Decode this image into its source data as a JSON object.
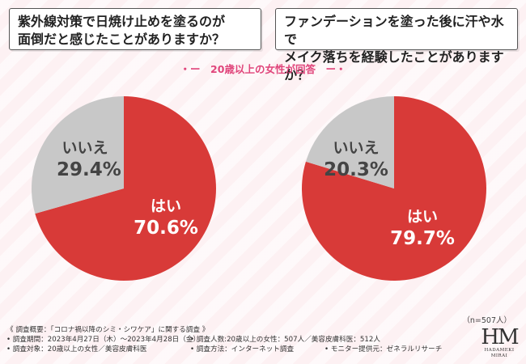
{
  "questions": {
    "left": [
      "紫外線対策で日焼け止めを塗るのが",
      "面倒だと感じたことがありますか？"
    ],
    "right": [
      "ファンデーションを塗った後に汗や水で",
      "メイク落ちを経験したことがありますか？"
    ]
  },
  "subheading": "・ー　20歳以上の女性が回答　ー・",
  "colors": {
    "yes": "#d83a38",
    "no": "#c8c8c8",
    "accent": "#e0457b"
  },
  "chart_data": [
    {
      "type": "pie",
      "title": "紫外線対策で日焼け止めを塗るのが面倒だと感じたことがありますか？",
      "labels": [
        "はい",
        "いいえ"
      ],
      "values": [
        70.6,
        29.4
      ],
      "value_labels": [
        "70.6%",
        "29.4%"
      ]
    },
    {
      "type": "pie",
      "title": "ファンデーションを塗った後に汗や水でメイク落ちを経験したことがありますか？",
      "labels": [
        "はい",
        "いいえ"
      ],
      "values": [
        79.7,
        20.3
      ],
      "value_labels": [
        "79.7%",
        "20.3%"
      ]
    }
  ],
  "sample_size": "（n=507人）",
  "footer": {
    "summary": "《 調査概要：「コロナ禍以降のシミ・シワケア」に関する調査 》",
    "period": "• 調査期間：2023年4月27日（木）～2023年4月28日（金）",
    "count": "• 調査人数:20歳以上の女性：507人／美容皮膚科医：512人",
    "target": "• 調査対象：20歳以上の女性／美容皮膚科医",
    "method": "• 調査方法：インターネット調査",
    "provider": "• モニター提供元：ゼネラルリサーチ"
  },
  "logo": {
    "mark": "HM",
    "name_line1": "HADAMEKI",
    "name_line2": "MIRAI"
  }
}
